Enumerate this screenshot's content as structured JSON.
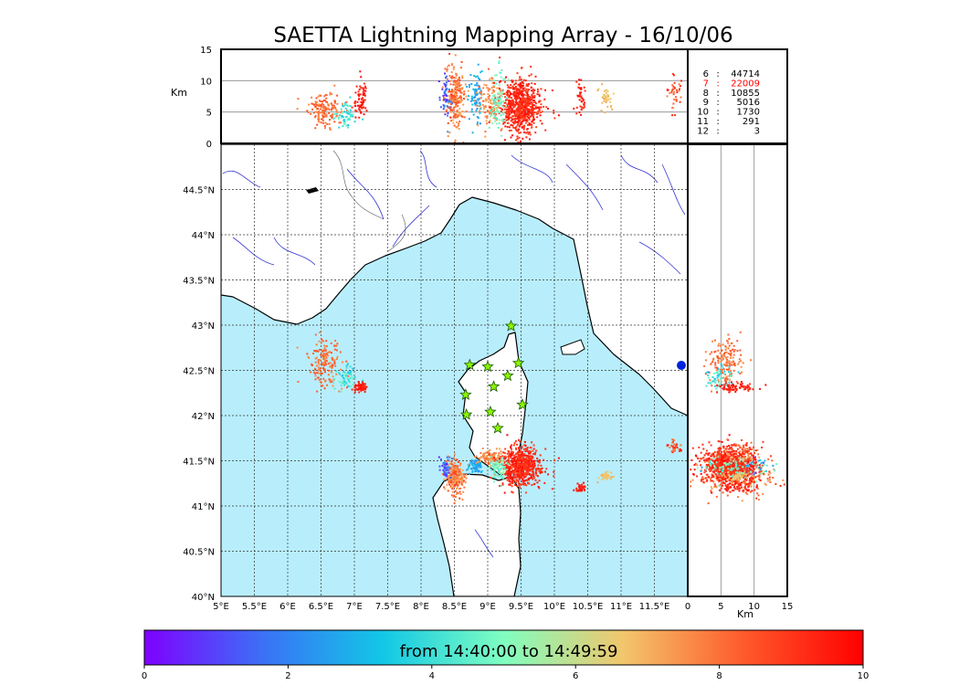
{
  "chart_data": {
    "type": "scatter",
    "title": "SAETTA Lightning Mapping Array - 16/10/06",
    "colorbar_label": "from 14:40:00 to 14:49:59",
    "colorbar_ticks": [
      "0",
      "2",
      "4",
      "6",
      "8",
      "10"
    ],
    "colorbar_range": [
      0,
      10
    ],
    "colorbar_colors": [
      "#7f00ff",
      "#3a72f6",
      "#12c8e6",
      "#80fec0",
      "#f2c66b",
      "#ff5a2c",
      "#ff0000"
    ],
    "map": {
      "lon_range": [
        5.0,
        12.0
      ],
      "lat_range": [
        40.0,
        45.0
      ],
      "lon_ticks": [
        "5°E",
        "5.5°E",
        "6°E",
        "6.5°E",
        "7°E",
        "7.5°E",
        "8°E",
        "8.5°E",
        "9°E",
        "9.5°E",
        "10°E",
        "10.5°E",
        "11°E",
        "11.5°E"
      ],
      "lat_ticks": [
        "40°N",
        "40.5°N",
        "41°N",
        "41.5°N",
        "42°N",
        "42.5°N",
        "43°N",
        "43.5°N",
        "44°N",
        "44.5°N"
      ],
      "sea_color": "#b8eefc",
      "grid": true
    },
    "altitude_panel": {
      "ylabel": "Km",
      "y_ticks": [
        "0",
        "5",
        "10",
        "15"
      ],
      "y_range": [
        0,
        15
      ]
    },
    "side_panel": {
      "xlabel": "Km",
      "x_ticks": [
        "0",
        "5",
        "10",
        "15"
      ],
      "x_range": [
        0,
        15
      ]
    },
    "station_counts": [
      {
        "stations": "6",
        "sep": ":",
        "count": "44714",
        "color": "#000000"
      },
      {
        "stations": "7",
        "sep": ":",
        "count": "22009",
        "color": "#ff0000"
      },
      {
        "stations": "8",
        "sep": ":",
        "count": "10855",
        "color": "#000000"
      },
      {
        "stations": "9",
        "sep": ":",
        "count": "5016",
        "color": "#000000"
      },
      {
        "stations": "10",
        "sep": ":",
        "count": "1730",
        "color": "#000000"
      },
      {
        "stations": "11",
        "sep": ":",
        "count": "291",
        "color": "#000000"
      },
      {
        "stations": "12",
        "sep": ":",
        "count": "3",
        "color": "#000000"
      }
    ],
    "stations": [
      {
        "lon": 9.35,
        "lat": 42.99
      },
      {
        "lon": 8.73,
        "lat": 42.56
      },
      {
        "lon": 9.0,
        "lat": 42.54
      },
      {
        "lon": 9.46,
        "lat": 42.58
      },
      {
        "lon": 9.3,
        "lat": 42.44
      },
      {
        "lon": 9.09,
        "lat": 42.32
      },
      {
        "lon": 8.67,
        "lat": 42.23
      },
      {
        "lon": 9.52,
        "lat": 42.12
      },
      {
        "lon": 8.68,
        "lat": 42.01
      },
      {
        "lon": 9.04,
        "lat": 42.04
      },
      {
        "lon": 9.15,
        "lat": 41.86
      }
    ],
    "clusters": [
      {
        "lon": 6.55,
        "lat": 42.6,
        "slon": 0.12,
        "slat": 0.14,
        "n": 160,
        "tmin": 7.4,
        "tmax": 8.6,
        "alt": 5.5,
        "salt": 1.2
      },
      {
        "lon": 6.85,
        "lat": 42.42,
        "slon": 0.08,
        "slat": 0.06,
        "n": 60,
        "tmin": 3.0,
        "tmax": 5.0,
        "alt": 4.5,
        "salt": 1.0
      },
      {
        "lon": 7.08,
        "lat": 42.32,
        "slon": 0.05,
        "slat": 0.025,
        "n": 70,
        "tmin": 9.0,
        "tmax": 9.9,
        "alt": 7.0,
        "salt": 1.5
      },
      {
        "lon": 8.5,
        "lat": 41.33,
        "slon": 0.08,
        "slat": 0.09,
        "n": 240,
        "tmin": 7.0,
        "tmax": 9.0,
        "alt": 7.5,
        "salt": 2.5
      },
      {
        "lon": 8.35,
        "lat": 41.42,
        "slon": 0.04,
        "slat": 0.06,
        "n": 50,
        "tmin": 0.5,
        "tmax": 2.5,
        "alt": 8.0,
        "salt": 2.0
      },
      {
        "lon": 8.82,
        "lat": 41.45,
        "slon": 0.05,
        "slat": 0.04,
        "n": 80,
        "tmin": 2.0,
        "tmax": 3.3,
        "alt": 7.5,
        "salt": 2.0
      },
      {
        "lon": 9.02,
        "lat": 41.55,
        "slon": 0.09,
        "slat": 0.04,
        "n": 110,
        "tmin": 7.0,
        "tmax": 8.2,
        "alt": 6.5,
        "salt": 2.0
      },
      {
        "lon": 9.48,
        "lat": 41.45,
        "slon": 0.15,
        "slat": 0.11,
        "n": 700,
        "tmin": 8.6,
        "tmax": 9.9,
        "alt": 6.0,
        "salt": 2.2
      },
      {
        "lon": 9.15,
        "lat": 41.42,
        "slon": 0.06,
        "slat": 0.06,
        "n": 90,
        "tmin": 4.3,
        "tmax": 5.6,
        "alt": 7.0,
        "salt": 2.5
      },
      {
        "lon": 10.38,
        "lat": 41.21,
        "slon": 0.04,
        "slat": 0.02,
        "n": 40,
        "tmin": 9.0,
        "tmax": 9.9,
        "alt": 7.5,
        "salt": 1.2
      },
      {
        "lon": 10.75,
        "lat": 41.34,
        "slon": 0.05,
        "slat": 0.025,
        "n": 40,
        "tmin": 6.5,
        "tmax": 7.3,
        "alt": 7.5,
        "salt": 1.2
      },
      {
        "lon": 11.8,
        "lat": 41.66,
        "slon": 0.06,
        "slat": 0.03,
        "n": 35,
        "tmin": 7.5,
        "tmax": 9.5,
        "alt": 8.0,
        "salt": 1.6
      }
    ]
  }
}
